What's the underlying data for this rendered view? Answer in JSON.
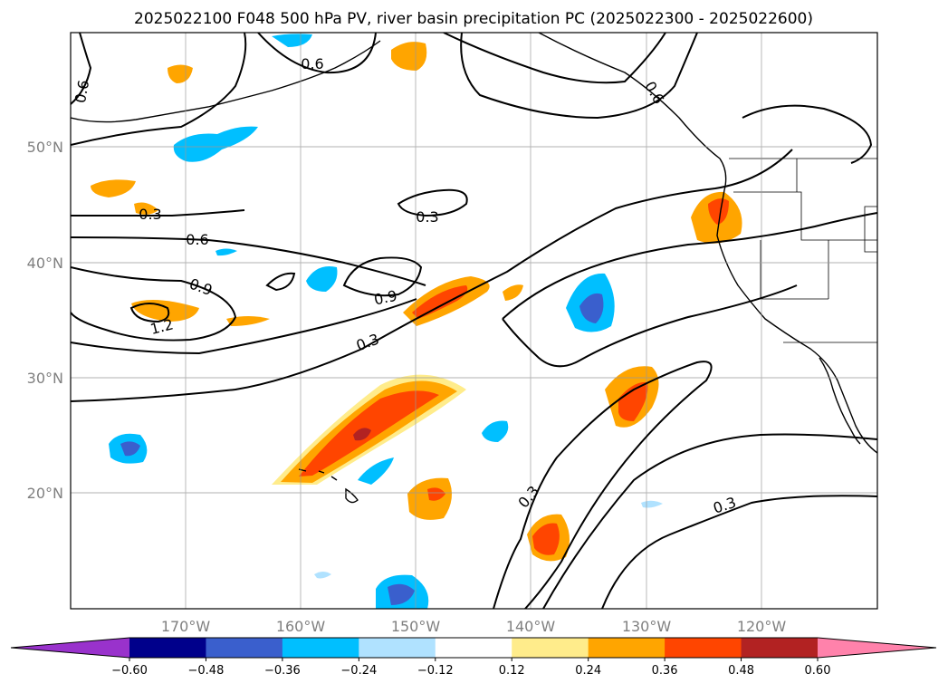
{
  "title": "2025022100 F048 500 hPa PV, river basin precipitation PC (2025022300 - 2025022600)",
  "map": {
    "lat_labels": [
      "50°N",
      "40°N",
      "30°N",
      "20°N"
    ],
    "lon_labels": [
      "170°W",
      "160°W",
      "150°W",
      "140°W",
      "130°W",
      "120°W"
    ],
    "gridlines": true
  },
  "pv_contour_labels": [
    "0.6",
    "0.6",
    "0.3",
    "0.3",
    "0.6",
    "0.9",
    "0.9",
    "1.2",
    "0.3",
    "0.3",
    "0.3",
    "0.6"
  ],
  "colorbar": {
    "ticks": [
      "−0.60",
      "−0.48",
      "−0.36",
      "−0.24",
      "−0.12",
      "0.12",
      "0.24",
      "0.36",
      "0.48",
      "0.60"
    ],
    "colors": [
      "#9932cc",
      "#00008b",
      "#3a5fcd",
      "#00bfff",
      "#b0e2ff",
      "#ffffff",
      "#ffec8b",
      "#ffa500",
      "#ff4500",
      "#b22222",
      "#ff82ab"
    ]
  }
}
